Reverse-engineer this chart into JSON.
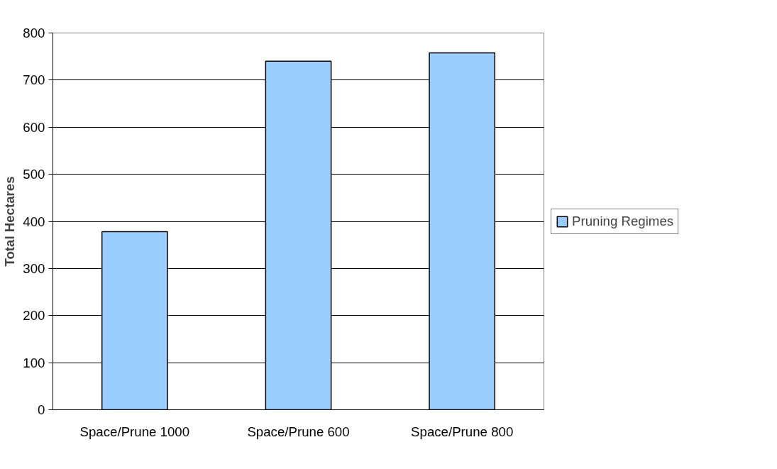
{
  "chart_data": {
    "type": "bar",
    "ylabel": "Total Hectares",
    "categories": [
      "Space/Prune 1000",
      "Space/Prune 600",
      "Space/Prune 800"
    ],
    "series": [
      {
        "name": "Pruning Regimes",
        "color": "#99ccff",
        "values": [
          378,
          740,
          758
        ]
      }
    ],
    "ylim": [
      0,
      800
    ],
    "yticks": [
      0,
      100,
      200,
      300,
      400,
      500,
      600,
      700,
      800
    ],
    "grid": "y",
    "legend": "right"
  }
}
